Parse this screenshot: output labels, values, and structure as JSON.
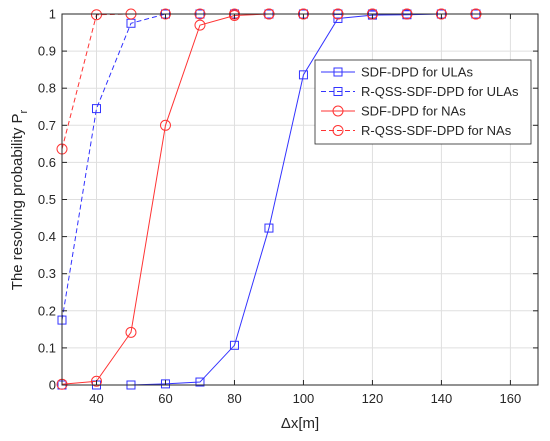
{
  "chart_data": {
    "type": "line",
    "title": "",
    "xlabel": "Δx[m]",
    "ylabel_main": "The resolving probability P",
    "ylabel_sub": "r",
    "xlim": [
      30,
      168
    ],
    "ylim": [
      0,
      1
    ],
    "x_ticks": [
      "40",
      "60",
      "80",
      "100",
      "120",
      "140",
      "160"
    ],
    "x_tick_values": [
      40,
      60,
      80,
      100,
      120,
      140,
      160
    ],
    "y_ticks": [
      "0",
      "0.1",
      "0.2",
      "0.3",
      "0.4",
      "0.5",
      "0.6",
      "0.7",
      "0.8",
      "0.9",
      "1"
    ],
    "y_tick_values": [
      0,
      0.1,
      0.2,
      0.3,
      0.4,
      0.5,
      0.6,
      0.7,
      0.8,
      0.9,
      1
    ],
    "grid": true,
    "legend_position": "top-right",
    "x": [
      30,
      40,
      50,
      60,
      70,
      80,
      90,
      100,
      110,
      120,
      130,
      140,
      150
    ],
    "series": [
      {
        "name": "SDF-DPD for ULAs",
        "color": "#3333ff",
        "dash": "solid",
        "marker": "square",
        "values": [
          0.0,
          0.0,
          0.0,
          0.003,
          0.008,
          0.107,
          0.423,
          0.836,
          0.988,
          0.997,
          0.998,
          1.0,
          1.0
        ]
      },
      {
        "name": "R-QSS-SDF-DPD for ULAs",
        "color": "#3333ff",
        "dash": "dashed",
        "marker": "square",
        "values": [
          0.175,
          0.745,
          0.975,
          1.0,
          1.0,
          1.0,
          1.0,
          1.0,
          1.0,
          1.0,
          1.0,
          1.0,
          1.0
        ]
      },
      {
        "name": "SDF-DPD for NAs",
        "color": "#ff3333",
        "dash": "solid",
        "marker": "circle",
        "values": [
          0.002,
          0.01,
          0.142,
          0.7,
          0.97,
          0.996,
          1.0,
          1.0,
          1.0,
          1.0,
          1.0,
          1.0,
          1.0
        ]
      },
      {
        "name": "R-QSS-SDF-DPD for NAs",
        "color": "#ff3333",
        "dash": "dashed",
        "marker": "circle",
        "values": [
          0.636,
          0.998,
          1.0,
          1.0,
          1.0,
          1.0,
          1.0,
          1.0,
          1.0,
          1.0,
          1.0,
          1.0,
          1.0
        ]
      }
    ]
  }
}
